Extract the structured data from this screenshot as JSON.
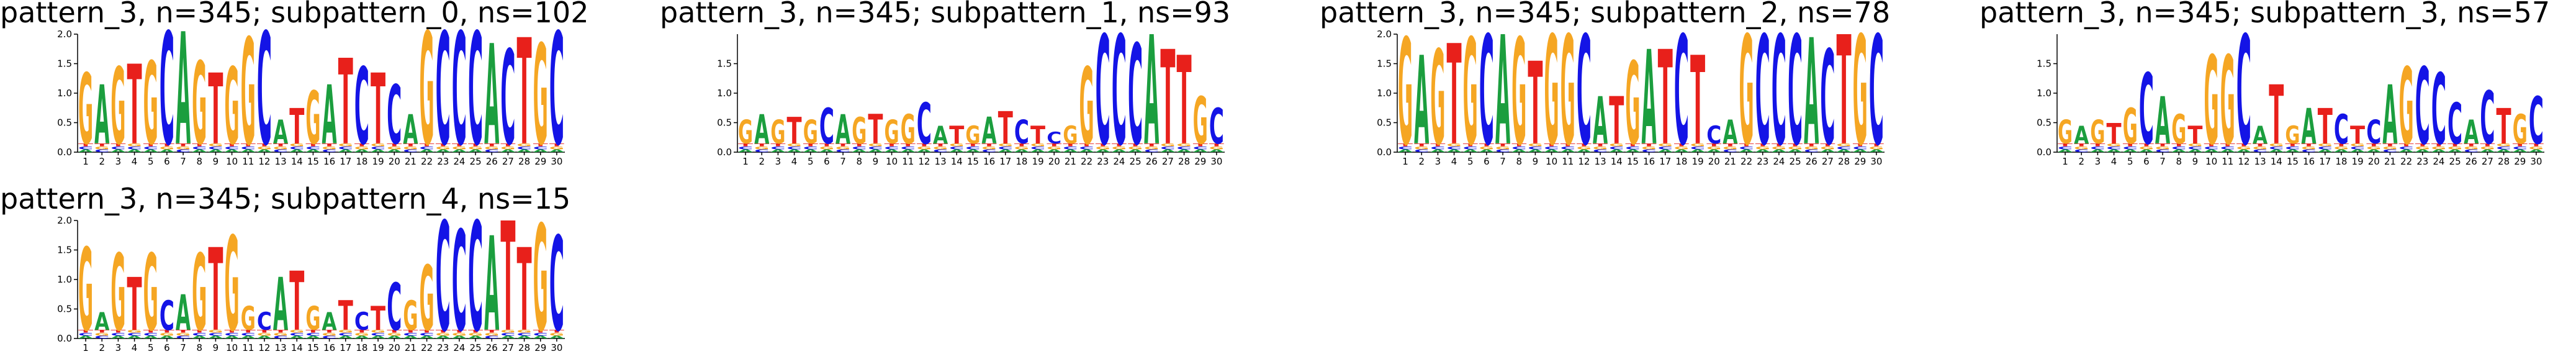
{
  "chart_data": [
    {
      "type": "logo",
      "title": "pattern_3, n=345; subpattern_0, ns=102",
      "categories": [
        1,
        2,
        3,
        4,
        5,
        6,
        7,
        8,
        9,
        10,
        11,
        12,
        13,
        14,
        15,
        16,
        17,
        18,
        19,
        20,
        21,
        22,
        23,
        24,
        25,
        26,
        27,
        28,
        29,
        30
      ],
      "ylim": [
        0,
        2
      ],
      "yticks": [
        {
          "value": 0,
          "label": "0.0"
        },
        {
          "value": 0.5,
          "label": "0.5"
        },
        {
          "value": 1,
          "label": "1.0"
        },
        {
          "value": 1.5,
          "label": "1.5"
        },
        {
          "value": 2,
          "label": "2.0"
        }
      ],
      "series": [
        {
          "name": "A",
          "color": "#1b9e3e",
          "values": [
            0.05,
            1.0,
            0.05,
            0.05,
            0.05,
            0.05,
            1.9,
            0.05,
            0.05,
            0.05,
            0.05,
            0.05,
            0.4,
            0.05,
            0.05,
            1.0,
            0.05,
            0.05,
            0.05,
            0.05,
            0.5,
            0.05,
            0.05,
            0.05,
            0.05,
            1.7,
            0.05,
            0.05,
            0.05,
            0.05
          ]
        },
        {
          "name": "C",
          "color": "#1414e6",
          "values": [
            0.05,
            0.05,
            0.05,
            0.05,
            0.05,
            1.9,
            0.05,
            0.05,
            0.05,
            0.05,
            0.05,
            1.9,
            0.05,
            0.05,
            0.05,
            0.05,
            0.05,
            1.3,
            0.05,
            1.0,
            0.05,
            0.05,
            1.9,
            1.9,
            1.9,
            0.05,
            1.6,
            0.05,
            0.05,
            1.9
          ]
        },
        {
          "name": "G",
          "color": "#f5a623",
          "values": [
            1.2,
            0.05,
            1.3,
            0.05,
            1.4,
            0.05,
            0.05,
            1.4,
            0.05,
            1.3,
            1.8,
            0.05,
            0.05,
            0.05,
            0.9,
            0.05,
            0.05,
            0.05,
            0.05,
            0.05,
            0.05,
            1.9,
            0.05,
            0.05,
            0.05,
            0.05,
            0.05,
            0.05,
            1.7,
            0.05
          ]
        },
        {
          "name": "T",
          "color": "#e8201b",
          "values": [
            0.05,
            0.05,
            0.05,
            1.35,
            0.05,
            0.05,
            0.05,
            0.05,
            1.2,
            0.05,
            0.05,
            0.05,
            0.05,
            0.6,
            0.05,
            0.05,
            1.45,
            0.05,
            1.2,
            0.05,
            0.05,
            0.05,
            0.05,
            0.05,
            0.05,
            0.05,
            0.05,
            1.8,
            0.05,
            0.05
          ]
        }
      ]
    },
    {
      "type": "logo",
      "title": "pattern_3, n=345; subpattern_1, ns=93",
      "categories": [
        1,
        2,
        3,
        4,
        5,
        6,
        7,
        8,
        9,
        10,
        11,
        12,
        13,
        14,
        15,
        16,
        17,
        18,
        19,
        20,
        21,
        22,
        23,
        24,
        25,
        26,
        27,
        28,
        29,
        30
      ],
      "ylim": [
        0,
        2
      ],
      "yticks": [
        {
          "value": 0,
          "label": "0.0"
        },
        {
          "value": 0.5,
          "label": "0.5"
        },
        {
          "value": 1,
          "label": "1.0"
        },
        {
          "value": 1.5,
          "label": "1.5"
        }
      ],
      "series": [
        {
          "name": "A",
          "color": "#1b9e3e",
          "values": [
            0.05,
            0.5,
            0.05,
            0.05,
            0.05,
            0.05,
            0.5,
            0.05,
            0.05,
            0.05,
            0.05,
            0.05,
            0.3,
            0.05,
            0.05,
            0.45,
            0.05,
            0.05,
            0.05,
            0.05,
            0.05,
            0.05,
            0.05,
            0.05,
            0.05,
            1.85,
            0.05,
            0.05,
            0.05,
            0.05
          ]
        },
        {
          "name": "C",
          "color": "#1414e6",
          "values": [
            0.05,
            0.05,
            0.05,
            0.05,
            0.05,
            0.6,
            0.05,
            0.05,
            0.05,
            0.05,
            0.05,
            0.7,
            0.05,
            0.05,
            0.05,
            0.05,
            0.05,
            0.4,
            0.05,
            0.2,
            0.05,
            0.05,
            1.85,
            1.85,
            1.7,
            0.05,
            0.05,
            0.05,
            0.05,
            0.6
          ]
        },
        {
          "name": "G",
          "color": "#f5a623",
          "values": [
            0.4,
            0.05,
            0.4,
            0.05,
            0.4,
            0.05,
            0.05,
            0.45,
            0.05,
            0.4,
            0.5,
            0.05,
            0.05,
            0.05,
            0.3,
            0.05,
            0.05,
            0.05,
            0.05,
            0.05,
            0.3,
            1.3,
            0.05,
            0.05,
            0.05,
            0.05,
            0.05,
            0.05,
            0.8,
            0.05
          ]
        },
        {
          "name": "T",
          "color": "#e8201b",
          "values": [
            0.05,
            0.05,
            0.05,
            0.45,
            0.05,
            0.05,
            0.05,
            0.05,
            0.5,
            0.05,
            0.05,
            0.05,
            0.05,
            0.3,
            0.05,
            0.05,
            0.55,
            0.05,
            0.3,
            0.05,
            0.05,
            0.05,
            0.05,
            0.05,
            0.05,
            0.05,
            1.6,
            1.5,
            0.05,
            0.05
          ]
        }
      ]
    },
    {
      "type": "logo",
      "title": "pattern_3, n=345; subpattern_2, ns=78",
      "categories": [
        1,
        2,
        3,
        4,
        5,
        6,
        7,
        8,
        9,
        10,
        11,
        12,
        13,
        14,
        15,
        16,
        17,
        18,
        19,
        20,
        21,
        22,
        23,
        24,
        25,
        26,
        27,
        28,
        29,
        30
      ],
      "ylim": [
        0,
        2
      ],
      "yticks": [
        {
          "value": 0,
          "label": "0.0"
        },
        {
          "value": 0.5,
          "label": "0.5"
        },
        {
          "value": 1,
          "label": "1.0"
        },
        {
          "value": 1.5,
          "label": "1.5"
        },
        {
          "value": 2,
          "label": "2.0"
        }
      ],
      "series": [
        {
          "name": "A",
          "color": "#1b9e3e",
          "values": [
            0.05,
            1.5,
            0.05,
            0.05,
            0.05,
            0.05,
            1.85,
            0.05,
            0.05,
            0.05,
            0.05,
            0.05,
            0.8,
            0.05,
            0.05,
            1.6,
            0.05,
            0.05,
            0.05,
            0.05,
            0.4,
            0.05,
            0.05,
            0.05,
            0.05,
            1.8,
            0.05,
            0.05,
            0.05,
            0.05
          ]
        },
        {
          "name": "C",
          "color": "#1414e6",
          "values": [
            0.05,
            0.05,
            0.05,
            0.05,
            0.05,
            1.85,
            0.05,
            0.05,
            0.05,
            0.05,
            0.05,
            1.85,
            0.05,
            0.05,
            0.05,
            0.05,
            0.05,
            1.85,
            0.05,
            0.3,
            0.05,
            0.05,
            1.85,
            1.85,
            1.85,
            0.05,
            1.6,
            0.05,
            0.05,
            1.85
          ]
        },
        {
          "name": "G",
          "color": "#f5a623",
          "values": [
            1.8,
            0.05,
            1.6,
            0.05,
            1.8,
            0.05,
            0.05,
            1.8,
            0.05,
            1.85,
            1.85,
            0.05,
            0.05,
            0.05,
            1.4,
            0.05,
            0.05,
            0.05,
            0.05,
            0.05,
            0.05,
            1.85,
            0.05,
            0.05,
            0.05,
            0.05,
            0.05,
            0.05,
            1.85,
            0.05
          ]
        },
        {
          "name": "T",
          "color": "#e8201b",
          "values": [
            0.05,
            0.05,
            0.05,
            1.7,
            0.05,
            0.05,
            0.05,
            0.05,
            1.4,
            0.05,
            0.05,
            0.05,
            0.05,
            0.8,
            0.05,
            0.05,
            1.6,
            0.05,
            1.5,
            0.05,
            0.05,
            0.05,
            0.05,
            0.05,
            0.05,
            0.05,
            0.05,
            1.85,
            0.05,
            0.05
          ]
        }
      ]
    },
    {
      "type": "logo",
      "title": "pattern_3, n=345; subpattern_3, ns=57",
      "categories": [
        1,
        2,
        3,
        4,
        5,
        6,
        7,
        8,
        9,
        10,
        11,
        12,
        13,
        14,
        15,
        16,
        17,
        18,
        19,
        20,
        21,
        22,
        23,
        24,
        25,
        26,
        27,
        28,
        29,
        30
      ],
      "ylim": [
        0,
        2
      ],
      "yticks": [
        {
          "value": 0,
          "label": "0.0"
        },
        {
          "value": 0.5,
          "label": "0.5"
        },
        {
          "value": 1,
          "label": "1.0"
        },
        {
          "value": 1.5,
          "label": "1.5"
        }
      ],
      "series": [
        {
          "name": "A",
          "color": "#1b9e3e",
          "values": [
            0.05,
            0.3,
            0.05,
            0.05,
            0.05,
            0.05,
            0.8,
            0.05,
            0.05,
            0.05,
            0.05,
            0.05,
            0.3,
            0.05,
            0.05,
            0.6,
            0.05,
            0.05,
            0.05,
            0.05,
            1.0,
            0.05,
            0.05,
            0.05,
            0.05,
            0.4,
            0.05,
            0.05,
            0.05,
            0.05
          ]
        },
        {
          "name": "C",
          "color": "#1414e6",
          "values": [
            0.05,
            0.05,
            0.05,
            0.05,
            0.05,
            1.2,
            0.05,
            0.05,
            0.05,
            0.05,
            0.05,
            1.85,
            0.05,
            0.05,
            0.05,
            0.05,
            0.05,
            0.5,
            0.05,
            0.4,
            0.05,
            0.05,
            1.3,
            1.2,
            0.7,
            0.05,
            0.9,
            0.05,
            0.05,
            0.8
          ]
        },
        {
          "name": "G",
          "color": "#f5a623",
          "values": [
            0.4,
            0.05,
            0.4,
            0.05,
            0.6,
            0.05,
            0.05,
            0.5,
            0.05,
            1.5,
            1.5,
            0.05,
            0.05,
            0.05,
            0.3,
            0.05,
            0.05,
            0.05,
            0.05,
            0.05,
            0.05,
            1.3,
            0.05,
            0.05,
            0.05,
            0.05,
            0.05,
            0.05,
            0.5,
            0.05
          ]
        },
        {
          "name": "T",
          "color": "#e8201b",
          "values": [
            0.05,
            0.05,
            0.05,
            0.35,
            0.05,
            0.05,
            0.05,
            0.05,
            0.3,
            0.05,
            0.05,
            0.05,
            0.05,
            1.0,
            0.05,
            0.05,
            0.6,
            0.05,
            0.3,
            0.05,
            0.05,
            0.05,
            0.05,
            0.05,
            0.05,
            0.05,
            0.05,
            0.6,
            0.05,
            0.05
          ]
        }
      ]
    },
    {
      "type": "logo",
      "title": "pattern_3, n=345; subpattern_4, ns=15",
      "categories": [
        1,
        2,
        3,
        4,
        5,
        6,
        7,
        8,
        9,
        10,
        11,
        12,
        13,
        14,
        15,
        16,
        17,
        18,
        19,
        20,
        21,
        22,
        23,
        24,
        25,
        26,
        27,
        28,
        29,
        30
      ],
      "ylim": [
        0,
        2
      ],
      "yticks": [
        {
          "value": 0,
          "label": "0.0"
        },
        {
          "value": 0.5,
          "label": "0.5"
        },
        {
          "value": 1,
          "label": "1.0"
        },
        {
          "value": 1.5,
          "label": "1.5"
        },
        {
          "value": 2,
          "label": "2.0"
        }
      ],
      "series": [
        {
          "name": "A",
          "color": "#1b9e3e",
          "values": [
            0.05,
            0.3,
            0.05,
            0.05,
            0.05,
            0.05,
            0.6,
            0.05,
            0.05,
            0.05,
            0.05,
            0.05,
            0.9,
            0.05,
            0.05,
            0.3,
            0.05,
            0.05,
            0.05,
            0.05,
            0.05,
            0.05,
            0.05,
            0.05,
            0.05,
            1.6,
            0.05,
            0.05,
            0.05,
            0.05
          ]
        },
        {
          "name": "C",
          "color": "#1414e6",
          "values": [
            0.05,
            0.05,
            0.05,
            0.05,
            0.05,
            0.5,
            0.05,
            0.05,
            0.05,
            0.05,
            0.05,
            0.3,
            0.05,
            0.05,
            0.05,
            0.05,
            0.05,
            0.3,
            0.05,
            0.8,
            0.05,
            0.05,
            1.85,
            1.7,
            1.85,
            0.05,
            0.05,
            0.05,
            0.05,
            1.6
          ]
        },
        {
          "name": "G",
          "color": "#f5a623",
          "values": [
            1.4,
            0.05,
            1.3,
            0.05,
            1.3,
            0.05,
            0.05,
            1.3,
            0.05,
            1.6,
            0.4,
            0.05,
            0.05,
            0.05,
            0.4,
            0.05,
            0.05,
            0.05,
            0.05,
            0.05,
            0.5,
            1.1,
            0.05,
            0.05,
            0.05,
            0.05,
            0.05,
            0.05,
            1.8,
            0.05
          ]
        },
        {
          "name": "T",
          "color": "#e8201b",
          "values": [
            0.05,
            0.05,
            0.05,
            0.9,
            0.05,
            0.05,
            0.05,
            0.05,
            1.4,
            0.05,
            0.05,
            0.05,
            0.05,
            1.0,
            0.05,
            0.05,
            0.5,
            0.05,
            0.4,
            0.05,
            0.05,
            0.05,
            0.05,
            0.05,
            0.05,
            0.05,
            1.85,
            1.4,
            0.05,
            0.05
          ]
        }
      ]
    }
  ]
}
